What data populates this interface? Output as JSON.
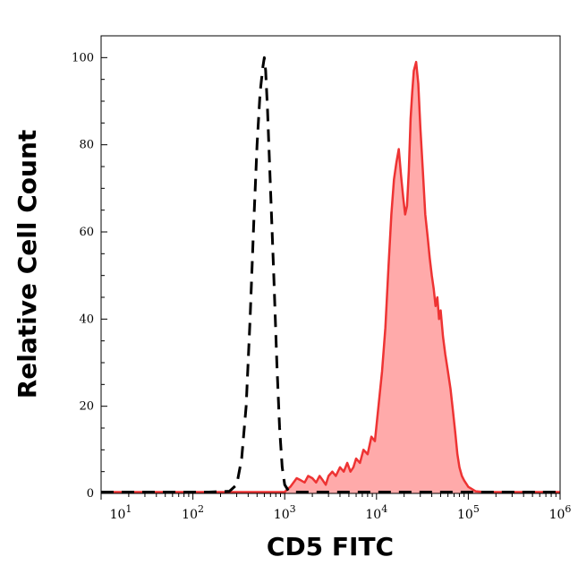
{
  "chart_data": {
    "type": "area",
    "title": "",
    "xlabel": "CD5 FITC",
    "ylabel": "Relative Cell Count",
    "xscale": "log",
    "xlim": [
      10,
      1000000
    ],
    "ylim": [
      0,
      105
    ],
    "grid": false,
    "legend": "none",
    "yticks": [
      {
        "value": 0,
        "label": "0"
      },
      {
        "value": 20,
        "label": "20"
      },
      {
        "value": 40,
        "label": "40"
      },
      {
        "value": 60,
        "label": "60"
      },
      {
        "value": 80,
        "label": "80"
      },
      {
        "value": 100,
        "label": "100"
      }
    ],
    "xticks": [
      {
        "value": 10,
        "base": "10",
        "exp": "1"
      },
      {
        "value": 100,
        "base": "10",
        "exp": "2"
      },
      {
        "value": 1000,
        "base": "10",
        "exp": "3"
      },
      {
        "value": 10000,
        "base": "10",
        "exp": "4"
      },
      {
        "value": 100000,
        "base": "10",
        "exp": "5"
      },
      {
        "value": 1000000,
        "base": "10",
        "exp": "6"
      }
    ],
    "series": [
      {
        "style": "dashed",
        "color": "#000000",
        "fill": "none",
        "x": [
          10,
          60,
          150,
          250,
          300,
          340,
          380,
          420,
          460,
          500,
          540,
          580,
          600,
          620,
          650,
          700,
          760,
          820,
          880,
          940,
          1000,
          1100,
          1300,
          2000,
          5000,
          20000,
          100000,
          500000,
          1000000
        ],
        "y": [
          0.3,
          0.3,
          0.3,
          0.5,
          2,
          8,
          20,
          40,
          62,
          80,
          92,
          98,
          100,
          97,
          88,
          70,
          50,
          30,
          15,
          6,
          2,
          0.6,
          0.3,
          0.3,
          0.3,
          0.3,
          0.3,
          0.3,
          0.3
        ]
      },
      {
        "style": "solid",
        "color": "#ee3333",
        "fill": "#ffaaaa",
        "x": [
          10,
          100,
          1000,
          1050,
          1150,
          1250,
          1350,
          1500,
          1650,
          1800,
          2000,
          2200,
          2400,
          2600,
          2800,
          3000,
          3300,
          3600,
          4000,
          4400,
          4800,
          5200,
          5600,
          6000,
          6600,
          7200,
          8000,
          8800,
          9600,
          10500,
          11500,
          12500,
          13500,
          14500,
          15500,
          16500,
          17500,
          18500,
          19500,
          20500,
          21500,
          22500,
          23500,
          24500,
          25500,
          27000,
          28500,
          30000,
          32000,
          34000,
          36000,
          38000,
          40000,
          42000,
          44000,
          46000,
          48000,
          50000,
          53000,
          56000,
          60000,
          64000,
          68000,
          72000,
          76000,
          80000,
          85000,
          90000,
          100000,
          120000,
          150000,
          200000,
          400000,
          1000000
        ],
        "y": [
          0.3,
          0.3,
          0.3,
          0.8,
          1.5,
          2.5,
          3.5,
          3,
          2.5,
          4,
          3.5,
          2.5,
          4,
          3,
          2,
          4,
          5,
          4,
          6,
          5,
          7,
          5,
          6,
          8,
          7,
          10,
          9,
          13,
          12,
          20,
          28,
          38,
          52,
          64,
          72,
          76,
          79,
          73,
          68,
          64,
          66,
          74,
          86,
          92,
          97,
          99,
          94,
          84,
          74,
          64,
          59,
          54,
          50,
          47,
          43,
          45,
          40,
          42,
          36,
          32,
          28,
          24,
          19,
          14,
          9,
          6,
          4,
          3,
          1.5,
          0.5,
          0.3,
          0.3,
          0.3,
          0.3
        ]
      }
    ]
  }
}
